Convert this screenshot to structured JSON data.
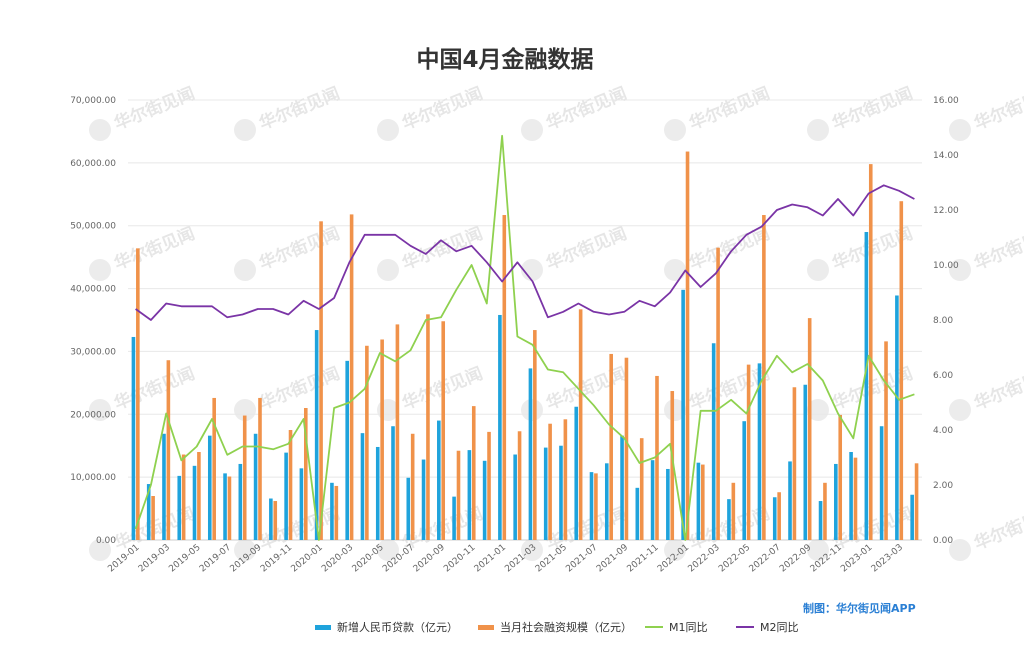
{
  "title": "中国4月金融数据",
  "credit": "制图：华尔街见闻APP",
  "watermark": "华尔街见闻",
  "colors": {
    "loans": "#1fa3dc",
    "tsf": "#f0924a",
    "m1": "#8fd14f",
    "m2": "#7a34a6",
    "grid": "#e8e8e8",
    "axis_text": "#666666"
  },
  "chart_data": {
    "type": "bar",
    "title": "中国4月金融数据",
    "xlabel": "",
    "ylabel": "",
    "categories": [
      "2019-01",
      "2019-02",
      "2019-03",
      "2019-04",
      "2019-05",
      "2019-06",
      "2019-07",
      "2019-08",
      "2019-09",
      "2019-10",
      "2019-11",
      "2019-12",
      "2020-01",
      "2020-02",
      "2020-03",
      "2020-04",
      "2020-05",
      "2020-06",
      "2020-07",
      "2020-08",
      "2020-09",
      "2020-10",
      "2020-11",
      "2020-12",
      "2021-01",
      "2021-02",
      "2021-03",
      "2021-04",
      "2021-05",
      "2021-06",
      "2021-07",
      "2021-08",
      "2021-09",
      "2021-10",
      "2021-11",
      "2021-12",
      "2022-01",
      "2022-02",
      "2022-03",
      "2022-04",
      "2022-05",
      "2022-06",
      "2022-07",
      "2022-08",
      "2022-09",
      "2022-10",
      "2022-11",
      "2022-12",
      "2023-01",
      "2023-02",
      "2023-03",
      "2023-04"
    ],
    "x_tick_labels": [
      "2019-01",
      "2019-03",
      "2019-05",
      "2019-07",
      "2019-09",
      "2019-11",
      "2020-01",
      "2020-03",
      "2020-05",
      "2020-07",
      "2020-09",
      "2020-11",
      "2021-01",
      "2021-03",
      "2021-05",
      "2021-07",
      "2021-09",
      "2021-11",
      "2022-01",
      "2022-03",
      "2022-05",
      "2022-07",
      "2022-09",
      "2022-11",
      "2023-01",
      "2023-03"
    ],
    "y_left": {
      "min": 0,
      "max": 70000,
      "ticks": [
        "0.00",
        "10,000.00",
        "20,000.00",
        "30,000.00",
        "40,000.00",
        "50,000.00",
        "60,000.00",
        "70,000.00"
      ]
    },
    "y_right": {
      "min": 0,
      "max": 16,
      "ticks": [
        "0.00",
        "2.00",
        "4.00",
        "6.00",
        "8.00",
        "10.00",
        "12.00",
        "14.00",
        "16.00"
      ]
    },
    "grid": true,
    "legend_position": "bottom",
    "series": [
      {
        "name": "新增人民币贷款（亿元）",
        "type": "bar",
        "axis": "left",
        "values": [
          32300,
          8900,
          16900,
          10200,
          11800,
          16600,
          10600,
          12100,
          16900,
          6600,
          13900,
          11400,
          33400,
          9100,
          28500,
          17000,
          14800,
          18100,
          9900,
          12800,
          19000,
          6900,
          14300,
          12600,
          35800,
          13600,
          27300,
          14700,
          15000,
          21200,
          10800,
          12200,
          16600,
          8300,
          12700,
          11300,
          39800,
          12300,
          31300,
          6500,
          18900,
          28100,
          6800,
          12500,
          24700,
          6200,
          12100,
          14000,
          49000,
          18100,
          38900,
          7200
        ]
      },
      {
        "name": "当月社会融资规模（亿元）",
        "type": "bar",
        "axis": "left",
        "values": [
          46400,
          7000,
          28600,
          13600,
          14000,
          22600,
          10100,
          19800,
          22600,
          6200,
          17500,
          21000,
          50700,
          8600,
          51800,
          30900,
          31900,
          34300,
          16900,
          35900,
          34800,
          14200,
          21300,
          17200,
          51700,
          17300,
          33400,
          18500,
          19200,
          36700,
          10600,
          29600,
          29000,
          16200,
          26100,
          23700,
          61800,
          12000,
          46500,
          9100,
          27900,
          51700,
          7600,
          24300,
          35300,
          9100,
          19900,
          13100,
          59800,
          31600,
          53900,
          12200
        ]
      },
      {
        "name": "M1同比",
        "type": "line",
        "axis": "right",
        "values": [
          0.4,
          2.0,
          4.6,
          2.9,
          3.4,
          4.4,
          3.1,
          3.4,
          3.4,
          3.3,
          3.5,
          4.4,
          0.0,
          4.8,
          5.0,
          5.5,
          6.8,
          6.5,
          6.9,
          8.0,
          8.1,
          9.1,
          10.0,
          8.6,
          14.7,
          7.4,
          7.1,
          6.2,
          6.1,
          5.5,
          4.9,
          4.2,
          3.7,
          2.8,
          3.0,
          3.5,
          -1.9,
          4.7,
          4.7,
          5.1,
          4.6,
          5.8,
          6.7,
          6.1,
          6.4,
          5.8,
          4.6,
          3.7,
          6.7,
          5.8,
          5.1,
          5.3
        ]
      },
      {
        "name": "M2同比",
        "type": "line",
        "axis": "right",
        "values": [
          8.4,
          8.0,
          8.6,
          8.5,
          8.5,
          8.5,
          8.1,
          8.2,
          8.4,
          8.4,
          8.2,
          8.7,
          8.4,
          8.8,
          10.1,
          11.1,
          11.1,
          11.1,
          10.7,
          10.4,
          10.9,
          10.5,
          10.7,
          10.1,
          9.4,
          10.1,
          9.4,
          8.1,
          8.3,
          8.6,
          8.3,
          8.2,
          8.3,
          8.7,
          8.5,
          9.0,
          9.8,
          9.2,
          9.7,
          10.5,
          11.1,
          11.4,
          12.0,
          12.2,
          12.1,
          11.8,
          12.4,
          11.8,
          12.6,
          12.9,
          12.7,
          12.4
        ]
      }
    ]
  }
}
